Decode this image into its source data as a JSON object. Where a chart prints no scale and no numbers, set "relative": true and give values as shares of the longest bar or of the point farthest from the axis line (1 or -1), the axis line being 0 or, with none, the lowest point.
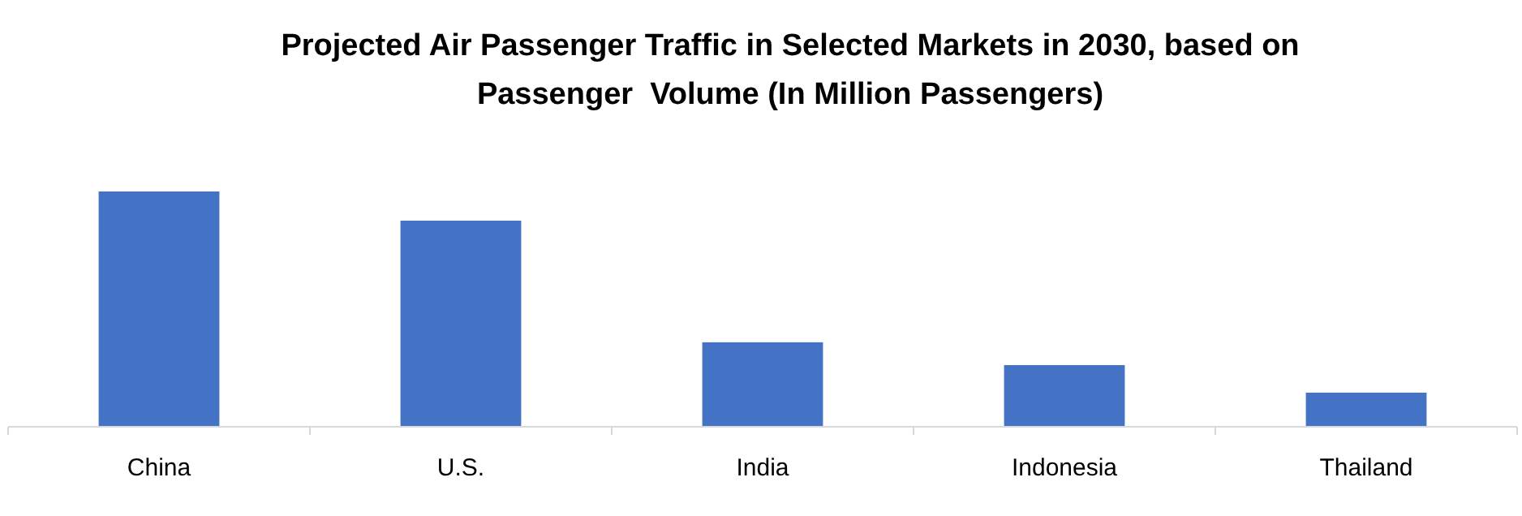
{
  "chart_data": {
    "type": "bar",
    "title": "Projected Air Passenger Traffic in Selected Markets in 2030, based on\nPassenger  Volume (In Million Passengers)",
    "categories": [
      "China",
      "U.S.",
      "India",
      "Indonesia",
      "Thailand"
    ],
    "values": [
      1,
      0.876,
      0.359,
      0.262,
      0.145
    ],
    "color": "#4472c4",
    "relative": true
  }
}
